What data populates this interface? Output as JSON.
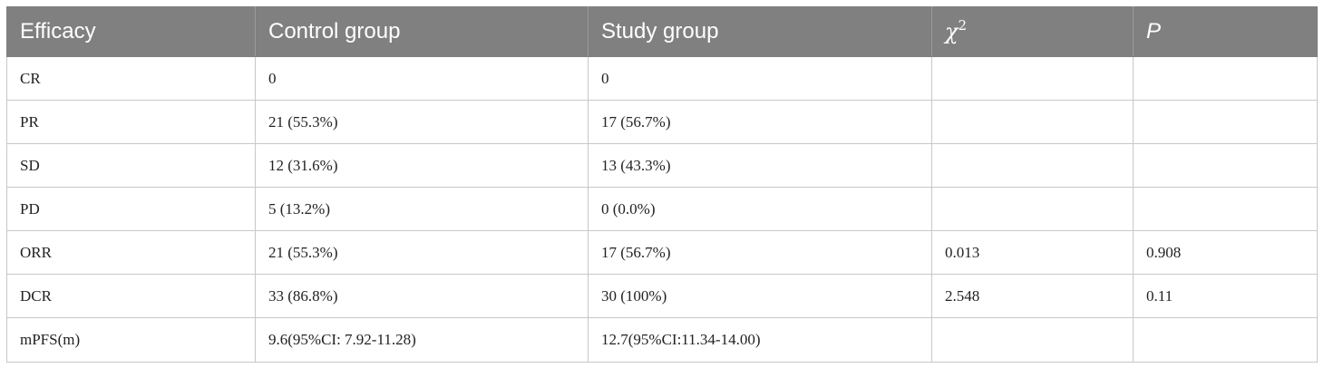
{
  "table": {
    "headers": {
      "efficacy": "Efficacy",
      "control": "Control group",
      "study": "Study group",
      "chi_symbol": "χ",
      "chi_exp": "2",
      "p": "P"
    },
    "rows": [
      {
        "efficacy": "CR",
        "control": "0",
        "study": "0",
        "chi": "",
        "p": ""
      },
      {
        "efficacy": "PR",
        "control": "21 (55.3%)",
        "study": "17 (56.7%)",
        "chi": "",
        "p": ""
      },
      {
        "efficacy": "SD",
        "control": "12 (31.6%)",
        "study": "13 (43.3%)",
        "chi": "",
        "p": ""
      },
      {
        "efficacy": "PD",
        "control": "5 (13.2%)",
        "study": "0 (0.0%)",
        "chi": "",
        "p": ""
      },
      {
        "efficacy": "ORR",
        "control": "21 (55.3%)",
        "study": "17 (56.7%)",
        "chi": "0.013",
        "p": "0.908"
      },
      {
        "efficacy": "DCR",
        "control": "33 (86.8%)",
        "study": "30 (100%)",
        "chi": "2.548",
        "p": "0.11"
      },
      {
        "efficacy": "mPFS(m)",
        "control": "9.6(95%CI: 7.92-11.28)",
        "study": "12.7(95%CI:11.34-14.00)",
        "chi": "",
        "p": ""
      }
    ]
  }
}
